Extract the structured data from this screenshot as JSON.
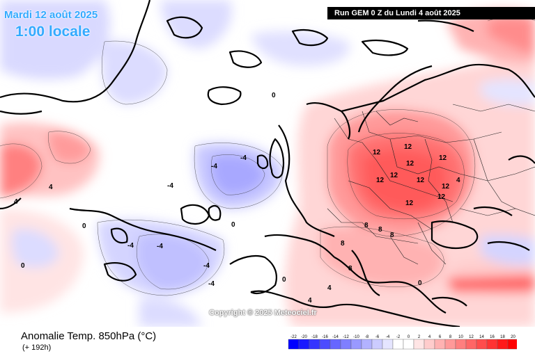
{
  "header": {
    "date": "Mardi 12 août 2025",
    "local_time": "1:00 locale",
    "run_info": "Run GEM 0 Z du Lundi 4 août 2025"
  },
  "copyright": "Copyright © 2025 Meteociel.fr",
  "footer": {
    "field_name": "Anomalie Temp. 850hPa (°C)",
    "lead_time": "(+ 192h)"
  },
  "legend": {
    "ticks": [
      "-22",
      "-20",
      "-18",
      "-16",
      "-14",
      "-12",
      "-10",
      "-8",
      "-6",
      "-4",
      "-2",
      "0",
      "2",
      "4",
      "6",
      "8",
      "10",
      "12",
      "14",
      "16",
      "18",
      "20"
    ],
    "colors": [
      "#0000ff",
      "#1919ff",
      "#3333ff",
      "#4c4cff",
      "#6666ff",
      "#7f7fff",
      "#9999ff",
      "#b2b2ff",
      "#ccccff",
      "#e5e5ff",
      "#ffffff",
      "#ffffff",
      "#ffe5e5",
      "#ffcccc",
      "#ffb2b2",
      "#ff9999",
      "#ff7f7f",
      "#ff6666",
      "#ff4c4c",
      "#ff3333",
      "#ff1919",
      "#ff0000"
    ]
  },
  "contour_labels": [
    "12",
    "12",
    "12",
    "12",
    "12",
    "12",
    "12",
    "12",
    "12",
    "12",
    "8",
    "8",
    "8",
    "8",
    "8",
    "4",
    "4",
    "4",
    "4",
    "4",
    "0",
    "0",
    "0",
    "0",
    "0",
    "0",
    "-4",
    "-4",
    "-4",
    "-4",
    "-4",
    "-4",
    "-4"
  ]
}
